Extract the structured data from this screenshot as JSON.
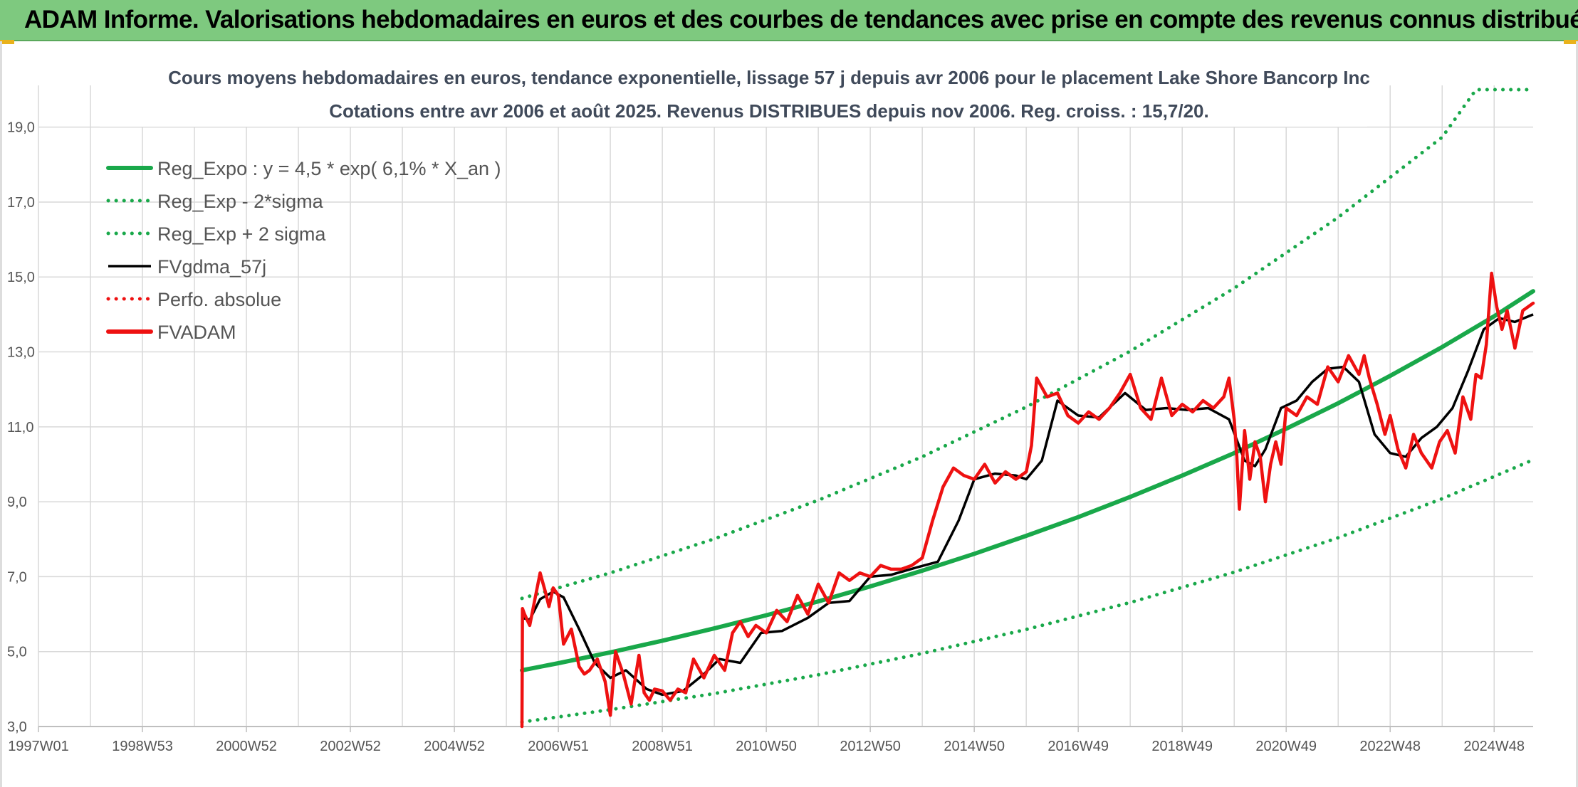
{
  "header": {
    "title": "ADAM Informe. Valorisations hebdomadaires en euros et des courbes de tendances avec prise en compte des revenus connus distribués"
  },
  "colors": {
    "header_bg": "#7ec97f",
    "reg_expo": "#19a84a",
    "fvgdma": "#000000",
    "fvadam": "#ee1111",
    "perfo": "#ee1111",
    "grid": "#d9d9d9"
  },
  "chart_data": {
    "type": "line",
    "title": "Cours moyens hebdomadaires en euros, tendance exponentielle, lissage 57 j depuis avr 2006 pour le placement Lake Shore Bancorp Inc",
    "subtitle": "Cotations entre avr 2006 et août 2025. Revenus DISTRIBUES depuis nov 2006. Reg. croiss. : 15,7/20.",
    "xlabel": "",
    "ylabel": "",
    "x_ticks": [
      "1997W01",
      "1998W53",
      "2000W52",
      "2002W52",
      "2004W52",
      "2006W51",
      "2008W51",
      "2010W50",
      "2012W50",
      "2014W50",
      "2016W49",
      "2018W49",
      "2020W49",
      "2022W48",
      "2024W48"
    ],
    "y_ticks": [
      "3,0",
      "5,0",
      "7,0",
      "9,0",
      "11,0",
      "13,0",
      "15,0",
      "17,0",
      "19,0"
    ],
    "xlim": [
      1997.0,
      2025.75
    ],
    "ylim": [
      3.0,
      20.0
    ],
    "grid": true,
    "legend_position": "top-left",
    "series": [
      {
        "name": "Reg_Expo : y = 4,5 * exp( 6,1% *  X_an )",
        "style": "solid-thick",
        "color": "#19a84a",
        "x": [
          2006.3,
          2007.0,
          2008.0,
          2009.0,
          2010.0,
          2011.0,
          2012.0,
          2013.0,
          2014.0,
          2015.0,
          2016.0,
          2017.0,
          2018.0,
          2019.0,
          2020.0,
          2021.0,
          2022.0,
          2023.0,
          2024.0,
          2025.0,
          2025.75
        ],
        "y": [
          4.5,
          4.69,
          4.98,
          5.29,
          5.62,
          5.97,
          6.34,
          6.74,
          7.16,
          7.61,
          8.09,
          8.59,
          9.13,
          9.7,
          10.3,
          10.95,
          11.63,
          12.36,
          13.13,
          13.95,
          14.62
        ]
      },
      {
        "name": "Reg_Exp - 2*sigma",
        "style": "dotted",
        "color": "#19a84a",
        "x": [
          2006.3,
          2008.0,
          2010.0,
          2012.0,
          2014.0,
          2016.0,
          2018.0,
          2020.0,
          2022.0,
          2024.0,
          2025.75
        ],
        "y": [
          3.12,
          3.45,
          3.88,
          4.38,
          4.95,
          5.59,
          6.31,
          7.12,
          8.04,
          9.08,
          10.12
        ]
      },
      {
        "name": "Reg_Exp + 2 sigma",
        "style": "dotted",
        "color": "#19a84a",
        "x": [
          2006.3,
          2008.0,
          2010.0,
          2012.0,
          2014.0,
          2016.0,
          2018.0,
          2020.0,
          2022.0,
          2024.0,
          2024.65,
          2025.75
        ],
        "y": [
          6.42,
          7.1,
          8.01,
          9.04,
          10.2,
          11.53,
          13.02,
          14.7,
          16.59,
          18.73,
          20.0,
          20.0
        ]
      },
      {
        "name": "FVgdma_57j",
        "style": "solid",
        "color": "#000000",
        "x": [
          2006.3,
          2006.45,
          2006.65,
          2006.9,
          2007.1,
          2007.4,
          2007.7,
          2008.0,
          2008.3,
          2008.7,
          2009.0,
          2009.4,
          2009.8,
          2010.1,
          2010.5,
          2010.9,
          2011.3,
          2011.8,
          2012.2,
          2012.6,
          2013.0,
          2013.4,
          2013.9,
          2014.3,
          2014.7,
          2015.0,
          2015.4,
          2015.8,
          2016.0,
          2016.3,
          2016.6,
          2017.0,
          2017.4,
          2017.9,
          2018.3,
          2018.7,
          2019.1,
          2019.5,
          2019.9,
          2020.2,
          2020.4,
          2020.6,
          2020.9,
          2021.2,
          2021.5,
          2021.8,
          2022.1,
          2022.4,
          2022.7,
          2023.0,
          2023.3,
          2023.6,
          2023.9,
          2024.2,
          2024.5,
          2024.8,
          2025.1,
          2025.4,
          2025.75
        ],
        "y": [
          5.9,
          5.85,
          6.4,
          6.6,
          6.45,
          5.6,
          4.7,
          4.3,
          4.5,
          4.0,
          3.85,
          3.95,
          4.4,
          4.8,
          4.7,
          5.5,
          5.55,
          5.9,
          6.3,
          6.35,
          7.0,
          7.05,
          7.25,
          7.4,
          8.5,
          9.6,
          9.75,
          9.7,
          9.6,
          10.1,
          11.7,
          11.3,
          11.25,
          11.9,
          11.45,
          11.5,
          11.45,
          11.5,
          11.2,
          10.1,
          9.95,
          10.4,
          11.5,
          11.7,
          12.2,
          12.55,
          12.6,
          12.2,
          10.8,
          10.3,
          10.2,
          10.7,
          11.0,
          11.5,
          12.5,
          13.6,
          13.9,
          13.8,
          14.0
        ]
      },
      {
        "name": "Perfo. absolue",
        "style": "dotted",
        "color": "#ee1111",
        "x": [],
        "y": []
      },
      {
        "name": "FVADAM",
        "style": "solid-thick",
        "color": "#ee1111",
        "x": [
          2006.3,
          2006.31,
          2006.35,
          2006.45,
          2006.55,
          2006.65,
          2006.75,
          2006.82,
          2006.9,
          2007.0,
          2007.1,
          2007.25,
          2007.4,
          2007.5,
          2007.6,
          2007.75,
          2007.9,
          2008.0,
          2008.1,
          2008.25,
          2008.4,
          2008.55,
          2008.65,
          2008.75,
          2008.85,
          2009.0,
          2009.15,
          2009.3,
          2009.45,
          2009.6,
          2009.8,
          2010.0,
          2010.2,
          2010.35,
          2010.5,
          2010.65,
          2010.8,
          2011.0,
          2011.2,
          2011.4,
          2011.6,
          2011.8,
          2012.0,
          2012.2,
          2012.4,
          2012.6,
          2012.8,
          2013.0,
          2013.2,
          2013.4,
          2013.6,
          2013.8,
          2014.0,
          2014.2,
          2014.4,
          2014.6,
          2014.8,
          2015.0,
          2015.2,
          2015.4,
          2015.6,
          2015.8,
          2016.0,
          2016.1,
          2016.2,
          2016.4,
          2016.6,
          2016.8,
          2017.0,
          2017.2,
          2017.4,
          2017.6,
          2017.8,
          2018.0,
          2018.2,
          2018.4,
          2018.6,
          2018.8,
          2019.0,
          2019.2,
          2019.4,
          2019.6,
          2019.8,
          2019.9,
          2020.0,
          2020.05,
          2020.1,
          2020.2,
          2020.3,
          2020.4,
          2020.5,
          2020.6,
          2020.7,
          2020.8,
          2020.9,
          2021.0,
          2021.2,
          2021.4,
          2021.6,
          2021.8,
          2022.0,
          2022.2,
          2022.4,
          2022.5,
          2022.6,
          2022.75,
          2022.9,
          2023.0,
          2023.15,
          2023.3,
          2023.45,
          2023.6,
          2023.7,
          2023.8,
          2023.95,
          2024.1,
          2024.25,
          2024.4,
          2024.55,
          2024.65,
          2024.75,
          2024.85,
          2024.95,
          2025.05,
          2025.15,
          2025.25,
          2025.4,
          2025.55,
          2025.75
        ],
        "y": [
          3.0,
          6.15,
          6.0,
          5.7,
          6.4,
          7.1,
          6.6,
          6.2,
          6.7,
          6.5,
          5.2,
          5.6,
          4.6,
          4.4,
          4.5,
          4.8,
          4.2,
          3.3,
          5.0,
          4.4,
          3.6,
          4.9,
          3.9,
          3.7,
          4.0,
          3.95,
          3.7,
          4.0,
          3.9,
          4.8,
          4.3,
          4.9,
          4.5,
          5.5,
          5.8,
          5.4,
          5.7,
          5.5,
          6.1,
          5.8,
          6.5,
          6.0,
          6.8,
          6.3,
          7.1,
          6.9,
          7.1,
          7.0,
          7.3,
          7.2,
          7.2,
          7.3,
          7.5,
          8.5,
          9.4,
          9.9,
          9.7,
          9.6,
          10.0,
          9.5,
          9.8,
          9.6,
          9.8,
          10.5,
          12.3,
          11.8,
          11.9,
          11.3,
          11.1,
          11.4,
          11.2,
          11.5,
          11.9,
          12.4,
          11.5,
          11.2,
          12.3,
          11.3,
          11.6,
          11.4,
          11.7,
          11.5,
          11.8,
          12.3,
          11.2,
          10.2,
          8.8,
          10.9,
          9.6,
          10.6,
          10.2,
          9.0,
          10.0,
          10.6,
          10.0,
          11.5,
          11.3,
          11.8,
          11.6,
          12.6,
          12.2,
          12.9,
          12.4,
          12.9,
          12.3,
          11.6,
          10.8,
          11.3,
          10.4,
          9.9,
          10.8,
          10.3,
          10.1,
          9.9,
          10.6,
          10.9,
          10.3,
          11.8,
          11.2,
          12.4,
          12.3,
          13.2,
          15.1,
          14.2,
          13.6,
          14.1,
          13.1,
          14.1,
          14.3
        ]
      }
    ]
  }
}
